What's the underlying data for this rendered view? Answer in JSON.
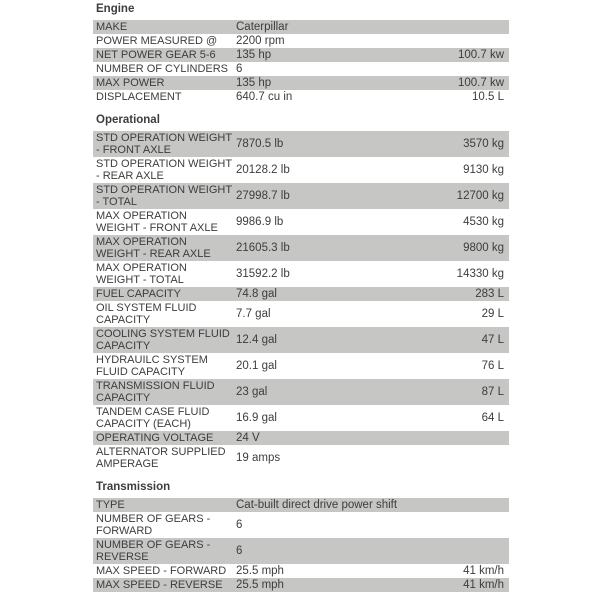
{
  "page": {
    "background_color": "#ffffff",
    "shaded_row_color": "#c6c6c4",
    "text_color": "#3d3d3d"
  },
  "sections": [
    {
      "title": "Engine",
      "rows": [
        {
          "label": "MAKE",
          "value": "Caterpillar",
          "metric": ""
        },
        {
          "label": "POWER MEASURED @",
          "value": "2200 rpm",
          "metric": ""
        },
        {
          "label": "NET POWER GEAR 5-6",
          "value": "135 hp",
          "metric": "100.7 kw"
        },
        {
          "label": "NUMBER OF CYLINDERS",
          "value": "6",
          "metric": ""
        },
        {
          "label": "MAX POWER",
          "value": "135 hp",
          "metric": "100.7 kw"
        },
        {
          "label": "DISPLACEMENT",
          "value": "640.7 cu in",
          "metric": "10.5 L"
        }
      ]
    },
    {
      "title": "Operational",
      "rows": [
        {
          "label": "STD OPERATION WEIGHT - FRONT AXLE",
          "value": "7870.5 lb",
          "metric": "3570 kg"
        },
        {
          "label": "STD OPERATION WEIGHT - REAR AXLE",
          "value": "20128.2 lb",
          "metric": "9130 kg"
        },
        {
          "label": "STD OPERATION WEIGHT - TOTAL",
          "value": "27998.7 lb",
          "metric": "12700 kg"
        },
        {
          "label": "MAX OPERATION WEIGHT - FRONT AXLE",
          "value": "9986.9 lb",
          "metric": "4530 kg"
        },
        {
          "label": "MAX OPERATION WEIGHT - REAR AXLE",
          "value": "21605.3 lb",
          "metric": "9800 kg"
        },
        {
          "label": "MAX OPERATION WEIGHT - TOTAL",
          "value": "31592.2 lb",
          "metric": "14330 kg"
        },
        {
          "label": "FUEL CAPACITY",
          "value": "74.8 gal",
          "metric": "283 L"
        },
        {
          "label": "OIL SYSTEM FLUID CAPACITY",
          "value": "7.7 gal",
          "metric": "29 L"
        },
        {
          "label": "COOLING SYSTEM FLUID CAPACITY",
          "value": "12.4 gal",
          "metric": "47 L"
        },
        {
          "label": "HYDRAUILC SYSTEM FLUID CAPACITY",
          "value": "20.1 gal",
          "metric": "76 L"
        },
        {
          "label": "TRANSMISSION FLUID CAPACITY",
          "value": "23 gal",
          "metric": "87 L"
        },
        {
          "label": "TANDEM CASE FLUID CAPACITY (EACH)",
          "value": "16.9 gal",
          "metric": "64 L"
        },
        {
          "label": "OPERATING VOLTAGE",
          "value": "24 V",
          "metric": ""
        },
        {
          "label": "ALTERNATOR SUPPLIED AMPERAGE",
          "value": "19 amps",
          "metric": ""
        }
      ]
    },
    {
      "title": "Transmission",
      "rows": [
        {
          "label": "TYPE",
          "value": "Cat-built direct drive power shift",
          "metric": ""
        },
        {
          "label": "NUMBER OF GEARS - FORWARD",
          "value": "6",
          "metric": ""
        },
        {
          "label": "NUMBER OF GEARS - REVERSE",
          "value": "6",
          "metric": ""
        },
        {
          "label": "MAX SPEED - FORWARD",
          "value": "25.5 mph",
          "metric": "41 km/h"
        },
        {
          "label": "MAX SPEED - REVERSE",
          "value": "25.5 mph",
          "metric": "41 km/h"
        }
      ]
    }
  ]
}
